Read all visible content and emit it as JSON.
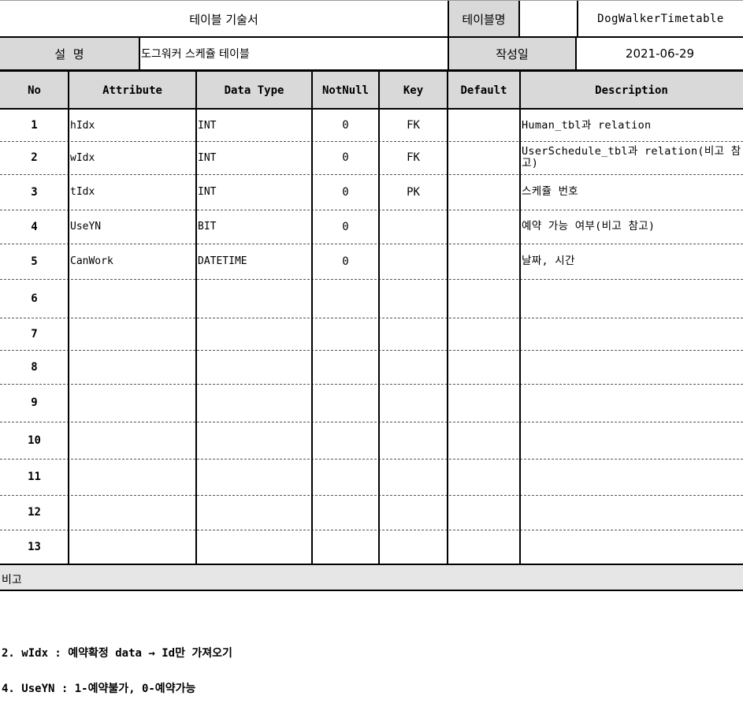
{
  "header": {
    "doc_title": "테이블 기술서",
    "table_name_label": "테이블명",
    "table_name_value": "DogWalkerTimetable",
    "description_label": "설  명",
    "description_value": "도그워커 스케쥴 테이블",
    "date_label": "작성일",
    "date_value": "2021-06-29"
  },
  "columns": [
    "No",
    "Attribute",
    "Data Type",
    "NotNull",
    "Key",
    "Default",
    "Description"
  ],
  "rows": [
    {
      "no": "1",
      "attribute": "hIdx",
      "type": "INT",
      "notnull": "0",
      "key": "FK",
      "default": "",
      "desc": "Human_tbl과 relation"
    },
    {
      "no": "2",
      "attribute": "wIdx",
      "type": "INT",
      "notnull": "0",
      "key": "FK",
      "default": "",
      "desc": "UserSchedule_tbl과   relation(비고 참고)"
    },
    {
      "no": "3",
      "attribute": "tIdx",
      "type": "INT",
      "notnull": "0",
      "key": "PK",
      "default": "",
      "desc": "스케쥴 번호"
    },
    {
      "no": "4",
      "attribute": "UseYN",
      "type": "BIT",
      "notnull": "0",
      "key": "",
      "default": "",
      "desc": "예약 가능 여부(비고 참고)"
    },
    {
      "no": "5",
      "attribute": "CanWork",
      "type": "DATETIME",
      "notnull": "0",
      "key": "",
      "default": "",
      "desc": "날짜, 시간"
    },
    {
      "no": "6",
      "attribute": "",
      "type": "",
      "notnull": "",
      "key": "",
      "default": "",
      "desc": ""
    },
    {
      "no": "7",
      "attribute": "",
      "type": "",
      "notnull": "",
      "key": "",
      "default": "",
      "desc": ""
    },
    {
      "no": "8",
      "attribute": "",
      "type": "",
      "notnull": "",
      "key": "",
      "default": "",
      "desc": ""
    },
    {
      "no": "9",
      "attribute": "",
      "type": "",
      "notnull": "",
      "key": "",
      "default": "",
      "desc": ""
    },
    {
      "no": "10",
      "attribute": "",
      "type": "",
      "notnull": "",
      "key": "",
      "default": "",
      "desc": ""
    },
    {
      "no": "11",
      "attribute": "",
      "type": "",
      "notnull": "",
      "key": "",
      "default": "",
      "desc": ""
    },
    {
      "no": "12",
      "attribute": "",
      "type": "",
      "notnull": "",
      "key": "",
      "default": "",
      "desc": ""
    },
    {
      "no": "13",
      "attribute": "",
      "type": "",
      "notnull": "",
      "key": "",
      "default": "",
      "desc": ""
    }
  ],
  "remarks": {
    "label": "비고",
    "line1": "2. wIdx : 예약확정 data → Id만 가져오기",
    "line2": "4. UseYN : 1-예약불가, 0-예약가능"
  }
}
